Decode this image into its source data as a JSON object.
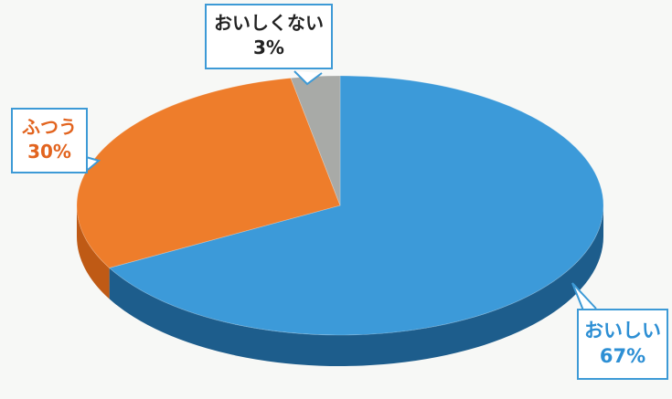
{
  "chart_data": {
    "type": "pie",
    "style": "3d",
    "title": "",
    "slices": [
      {
        "label": "おいしい",
        "value": 67,
        "display": "67%",
        "color": "#3c9ad9",
        "side_color": "#1d5d8c"
      },
      {
        "label": "ふつう",
        "value": 30,
        "display": "30%",
        "color": "#ee7d2b",
        "side_color": "#bf5a15"
      },
      {
        "label": "おいしくない",
        "value": 3,
        "display": "3%",
        "color": "#a8aaa7",
        "side_color": "#777977"
      }
    ],
    "label_colors": {
      "おいしい": "#2d8fd4",
      "ふつう": "#e2641f",
      "おいしくない": "#222222"
    }
  }
}
